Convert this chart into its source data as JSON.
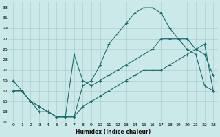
{
  "xlabel": "Humidex (Indice chaleur)",
  "ylabel": "",
  "bg_color": "#cce9ea",
  "grid_color": "#aacfd1",
  "line_color": "#1a6b6b",
  "xlim": [
    -0.5,
    23.5
  ],
  "ylim": [
    11,
    34
  ],
  "xticks": [
    0,
    1,
    2,
    3,
    4,
    5,
    6,
    7,
    8,
    9,
    10,
    11,
    12,
    13,
    14,
    15,
    16,
    17,
    18,
    19,
    20,
    21,
    22,
    23
  ],
  "yticks": [
    11,
    13,
    15,
    17,
    19,
    21,
    23,
    25,
    27,
    29,
    31,
    33
  ],
  "line1_x": [
    0,
    1,
    2,
    3,
    4,
    5,
    6,
    7,
    8,
    9,
    10,
    11,
    12,
    13,
    14,
    15,
    16,
    17,
    18,
    19,
    20,
    21,
    22,
    23
  ],
  "line1_y": [
    19,
    17,
    15,
    13,
    13,
    12,
    12,
    12,
    18,
    19,
    22,
    26,
    28,
    30,
    32,
    33,
    33,
    32,
    29,
    27,
    25,
    24,
    18,
    17
  ],
  "line2_x": [
    0,
    1,
    2,
    3,
    4,
    5,
    6,
    7,
    8,
    9,
    10,
    11,
    12,
    13,
    14,
    15,
    16,
    17,
    18,
    19,
    20,
    21,
    22,
    23
  ],
  "line2_y": [
    17,
    17,
    15,
    14,
    13,
    12,
    12,
    12,
    14,
    15,
    16,
    17,
    18,
    19,
    20,
    21,
    21,
    21,
    22,
    23,
    24,
    25,
    26,
    17
  ],
  "line3_x": [
    0,
    1,
    2,
    3,
    4,
    5,
    6,
    7,
    8,
    9,
    10,
    11,
    12,
    13,
    14,
    15,
    16,
    17,
    18,
    19,
    20,
    21,
    22,
    23
  ],
  "line3_y": [
    17,
    17,
    15,
    14,
    13,
    12,
    12,
    24,
    19,
    18,
    19,
    20,
    21,
    22,
    23,
    24,
    25,
    27,
    27,
    27,
    27,
    25,
    24,
    20
  ]
}
